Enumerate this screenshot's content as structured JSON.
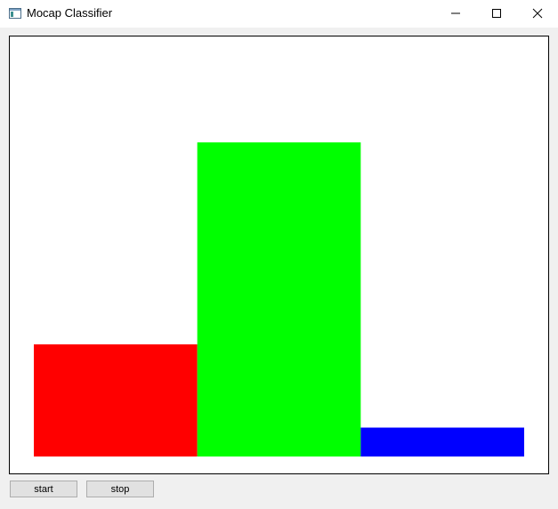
{
  "window": {
    "title": "Mocap Classifier",
    "icon": "app-window-icon",
    "controls": [
      "minimize-icon",
      "maximize-icon",
      "close-icon"
    ]
  },
  "chart_data": {
    "type": "bar",
    "categories": [
      "",
      "",
      ""
    ],
    "values": [
      0.357,
      1.0,
      0.092
    ],
    "colors": [
      "#ff0000",
      "#00ff00",
      "#0000ff"
    ],
    "ylim": [
      0,
      1.0
    ],
    "grid": false,
    "axes_visible": false
  },
  "buttons": {
    "start_label": "start",
    "stop_label": "stop"
  }
}
